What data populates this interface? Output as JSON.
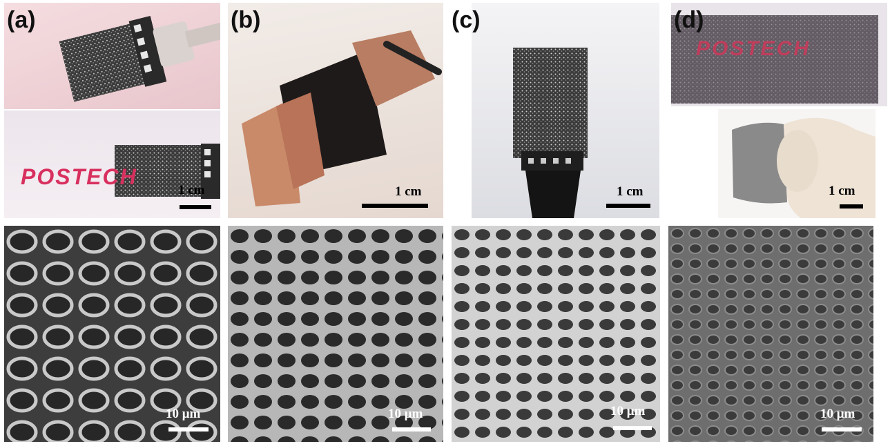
{
  "panels": [
    {
      "label": "(a)",
      "photo_scale": "1 cm",
      "sem_scale": "10 μm",
      "logo_text": "POSTECH"
    },
    {
      "label": "(b)",
      "photo_scale": "1 cm",
      "sem_scale": "10 μm"
    },
    {
      "label": "(c)",
      "photo_scale": "1 cm",
      "sem_scale": "10 μm"
    },
    {
      "label": "(d)",
      "photo_scale": "1 cm",
      "sem_scale": "10 μm",
      "logo_text": "POSTECH"
    }
  ],
  "colors": {
    "logo_red": "#d8305e",
    "copper": "#c98a6a",
    "sem_bg": "#3a3a3a",
    "sem_fiber": "#d6d6d6"
  }
}
